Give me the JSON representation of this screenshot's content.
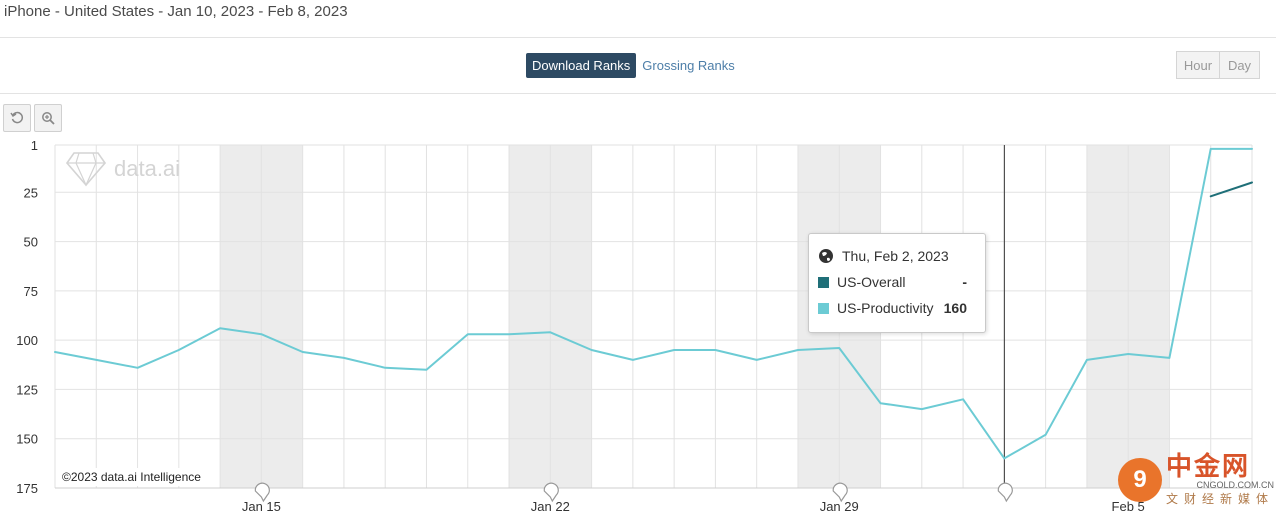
{
  "header": {
    "subtitle": "iPhone - United States - Jan 10, 2023 - Feb 8, 2023"
  },
  "rank_toggle": {
    "active": "Download Ranks",
    "inactive": "Grossing Ranks"
  },
  "granularity": {
    "hour": "Hour",
    "day": "Day"
  },
  "tools": {
    "reset_icon": "reset-icon",
    "zoom_icon": "zoom-icon"
  },
  "watermark": {
    "text": "data.ai"
  },
  "copyright": "©2023 data.ai Intelligence",
  "tooltip": {
    "date": "Thu, Feb 2, 2023",
    "rows": [
      {
        "label": "US-Overall",
        "value": "-",
        "color": "#1f6f78"
      },
      {
        "label": "US-Productivity",
        "value": "160",
        "color": "#6ccbd4"
      }
    ]
  },
  "corner_logo": {
    "glyph": "9",
    "name": "中金网",
    "url": "CNGOLD.COM.CN",
    "slogan": "文财经新媒体"
  },
  "chart_data": {
    "type": "line",
    "y_reversed": true,
    "ylim": [
      1,
      175
    ],
    "y_ticks": [
      "1",
      "25",
      "50",
      "75",
      "100",
      "125",
      "150",
      "175"
    ],
    "x_ticks": [
      {
        "label": "Jan 15",
        "date": "2023-01-15"
      },
      {
        "label": "Jan 22",
        "date": "2023-01-22"
      },
      {
        "label": "Jan 29",
        "date": "2023-01-29"
      },
      {
        "label": "Feb 5",
        "date": "2023-02-05"
      }
    ],
    "x": [
      "2023-01-10",
      "2023-01-11",
      "2023-01-12",
      "2023-01-13",
      "2023-01-14",
      "2023-01-15",
      "2023-01-16",
      "2023-01-17",
      "2023-01-18",
      "2023-01-19",
      "2023-01-20",
      "2023-01-21",
      "2023-01-22",
      "2023-01-23",
      "2023-01-24",
      "2023-01-25",
      "2023-01-26",
      "2023-01-27",
      "2023-01-28",
      "2023-01-29",
      "2023-01-30",
      "2023-01-31",
      "2023-02-01",
      "2023-02-02",
      "2023-02-03",
      "2023-02-04",
      "2023-02-05",
      "2023-02-06",
      "2023-02-07",
      "2023-02-08"
    ],
    "weekend_bands": [
      [
        "2023-01-14",
        "2023-01-16"
      ],
      [
        "2023-01-21",
        "2023-01-23"
      ],
      [
        "2023-01-28",
        "2023-01-30"
      ],
      [
        "2023-02-04",
        "2023-02-06"
      ]
    ],
    "crosshair_date": "2023-02-02",
    "series": [
      {
        "name": "US-Overall",
        "color": "#1f6f78",
        "values": [
          null,
          null,
          null,
          null,
          null,
          null,
          null,
          null,
          null,
          null,
          null,
          null,
          null,
          null,
          null,
          null,
          null,
          null,
          null,
          null,
          null,
          null,
          null,
          null,
          null,
          null,
          null,
          null,
          27,
          20
        ]
      },
      {
        "name": "US-Productivity",
        "color": "#6ccbd4",
        "values": [
          106,
          110,
          114,
          105,
          94,
          97,
          106,
          109,
          114,
          115,
          97,
          97,
          96,
          105,
          110,
          105,
          105,
          110,
          105,
          104,
          132,
          135,
          130,
          160,
          148,
          110,
          107,
          109,
          3,
          3
        ]
      }
    ],
    "grid": true
  }
}
